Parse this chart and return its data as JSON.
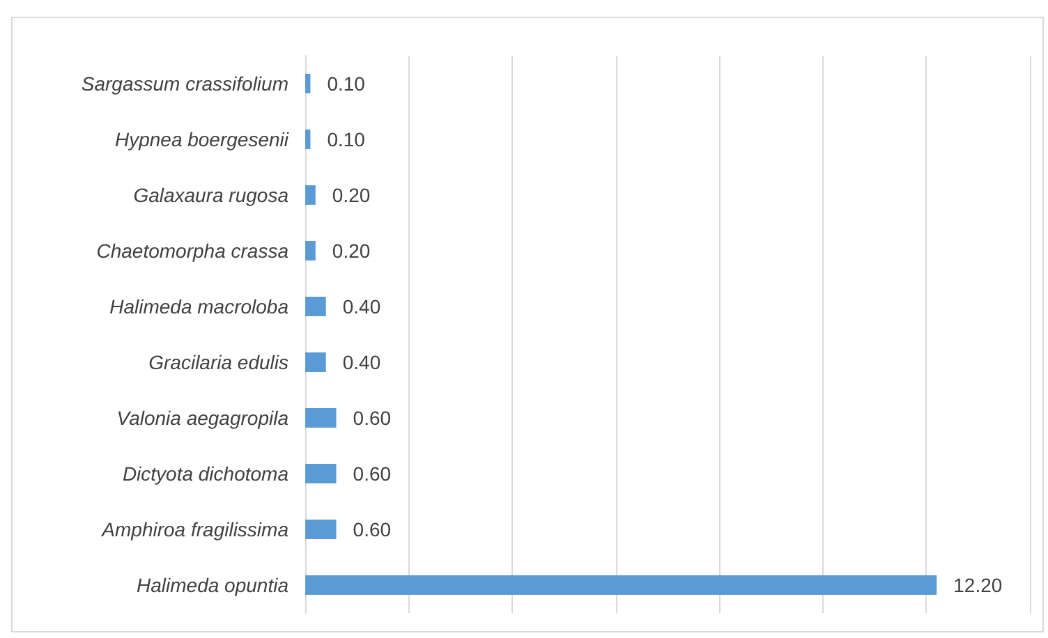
{
  "chart_data": {
    "type": "bar",
    "orientation": "horizontal",
    "categories": [
      "Sargassum crassifolium",
      "Hypnea boergesenii",
      "Galaxaura rugosa",
      "Chaetomorpha crassa",
      "Halimeda macroloba",
      "Gracilaria edulis",
      "Valonia aegagropila",
      "Dictyota dichotoma",
      "Amphiroa fragilissima",
      "Halimeda opuntia"
    ],
    "values": [
      0.1,
      0.1,
      0.2,
      0.2,
      0.4,
      0.4,
      0.6,
      0.6,
      0.6,
      12.2
    ],
    "value_labels": [
      "0.10",
      "0.10",
      "0.20",
      "0.20",
      "0.40",
      "0.40",
      "0.60",
      "0.60",
      "0.60",
      "12.20"
    ],
    "color": "#5b9bd5",
    "xlim": [
      0,
      14
    ],
    "xticks": [
      {
        "value": 0,
        "label": null
      },
      {
        "value": 2,
        "label": null
      },
      {
        "value": 4,
        "label": null
      },
      {
        "value": 6,
        "label": null
      },
      {
        "value": 8,
        "label": null
      },
      {
        "value": 10,
        "label": null
      },
      {
        "value": 12,
        "label": null
      },
      {
        "value": 14,
        "label": null
      }
    ],
    "grid": "x",
    "tick_labels": "y"
  }
}
